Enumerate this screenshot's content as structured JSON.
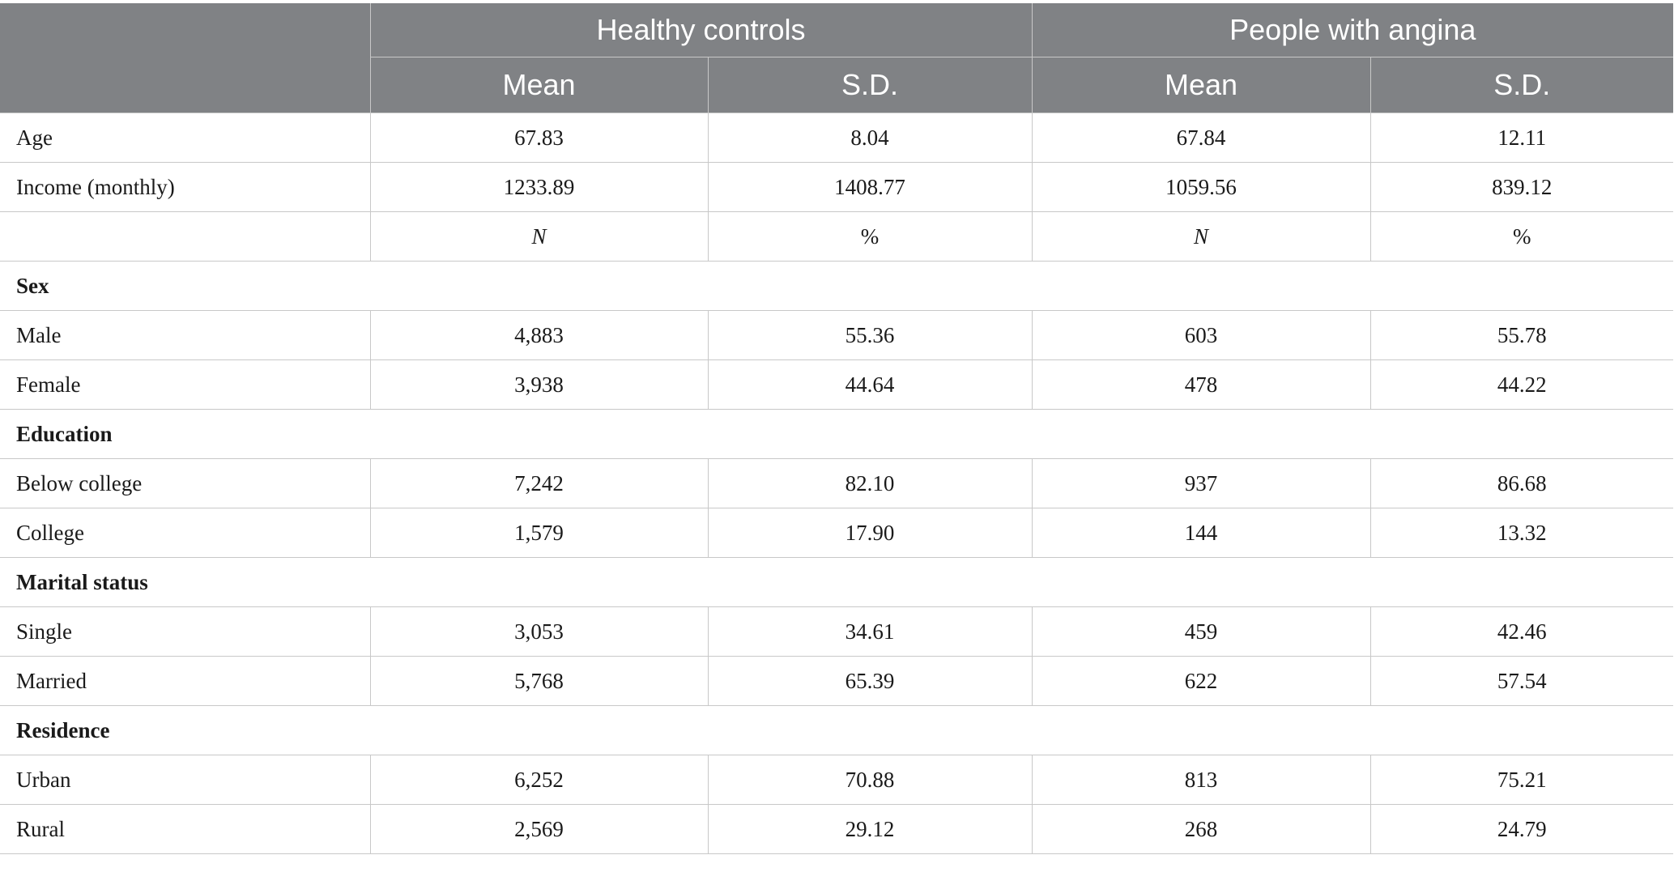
{
  "header": {
    "group_healthy": "Healthy controls",
    "group_angina": "People with angina",
    "col_mean_1": "Mean",
    "col_sd_1": "S.D.",
    "col_mean_2": "Mean",
    "col_sd_2": "S.D."
  },
  "rows": {
    "age": {
      "label": "Age",
      "v": [
        "67.83",
        "8.04",
        "67.84",
        "12.11"
      ]
    },
    "income": {
      "label": "Income (monthly)",
      "v": [
        "1233.89",
        "1408.77",
        "1059.56",
        "839.12"
      ]
    },
    "subheader": {
      "v": [
        "N",
        "%",
        "N",
        "%"
      ]
    },
    "sex": {
      "label": "Sex"
    },
    "male": {
      "label": "Male",
      "v": [
        "4,883",
        "55.36",
        "603",
        "55.78"
      ]
    },
    "female": {
      "label": "Female",
      "v": [
        "3,938",
        "44.64",
        "478",
        "44.22"
      ]
    },
    "education": {
      "label": "Education"
    },
    "below_college": {
      "label": "Below college",
      "v": [
        "7,242",
        "82.10",
        "937",
        "86.68"
      ]
    },
    "college": {
      "label": "College",
      "v": [
        "1,579",
        "17.90",
        "144",
        "13.32"
      ]
    },
    "marital": {
      "label": "Marital status"
    },
    "single": {
      "label": "Single",
      "v": [
        "3,053",
        "34.61",
        "459",
        "42.46"
      ]
    },
    "married": {
      "label": "Married",
      "v": [
        "5,768",
        "65.39",
        "622",
        "57.54"
      ]
    },
    "residence": {
      "label": "Residence"
    },
    "urban": {
      "label": "Urban",
      "v": [
        "6,252",
        "70.88",
        "813",
        "75.21"
      ]
    },
    "rural": {
      "label": "Rural",
      "v": [
        "2,569",
        "29.12",
        "268",
        "24.79"
      ]
    }
  }
}
